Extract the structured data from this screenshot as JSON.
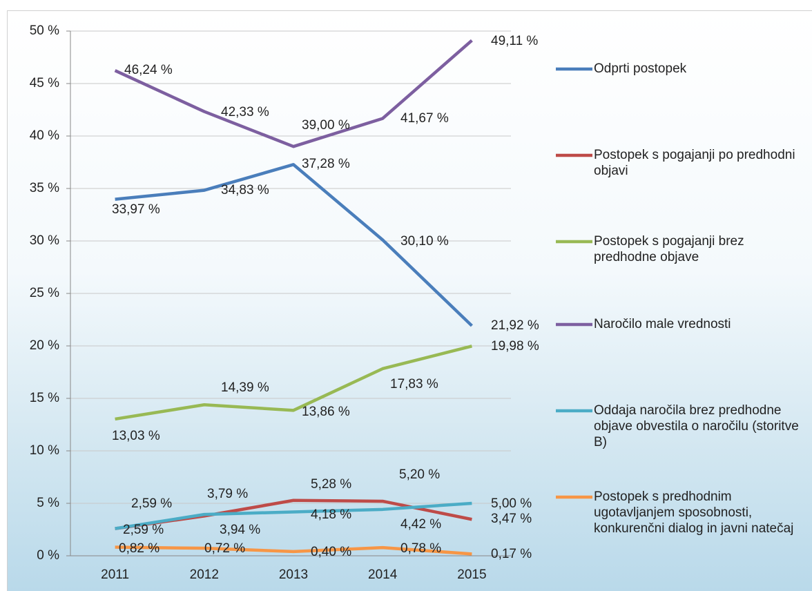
{
  "chart_data": {
    "type": "line",
    "categories": [
      "2011",
      "2012",
      "2013",
      "2014",
      "2015"
    ],
    "ylim": [
      0,
      50
    ],
    "yticks": [
      {
        "value": 0,
        "label": "0 %"
      },
      {
        "value": 5,
        "label": "5 %"
      },
      {
        "value": 10,
        "label": "10 %"
      },
      {
        "value": 15,
        "label": "15 %"
      },
      {
        "value": 20,
        "label": "20 %"
      },
      {
        "value": 25,
        "label": "25 %"
      },
      {
        "value": 30,
        "label": "30 %"
      },
      {
        "value": 35,
        "label": "35 %"
      },
      {
        "value": 40,
        "label": "40 %"
      },
      {
        "value": 45,
        "label": "45 %"
      },
      {
        "value": 50,
        "label": "50 %"
      }
    ],
    "grid": true,
    "legend": "right",
    "series": [
      {
        "name": "Odprti postopek",
        "color": "#4a7ebb",
        "values": [
          33.97,
          34.83,
          37.28,
          30.1,
          21.92
        ],
        "value_labels": [
          "33,97 %",
          "34,83 %",
          "37,28 %",
          "30,10 %",
          "21,92 %"
        ]
      },
      {
        "name": "Postopek s pogajanji po predhodni objavi",
        "color": "#be4b48",
        "values": [
          2.59,
          3.79,
          5.28,
          5.2,
          3.47
        ],
        "value_labels": [
          "2,59 %",
          "3,79 %",
          "5,28 %",
          "5,20 %",
          "3,47 %"
        ]
      },
      {
        "name": "Postopek s pogajanji brez predhodne objave",
        "color": "#98b954",
        "values": [
          13.03,
          14.39,
          13.86,
          17.83,
          19.98
        ],
        "value_labels": [
          "13,03 %",
          "14,39 %",
          "13,86 %",
          "17,83 %",
          "19,98 %"
        ]
      },
      {
        "name": "Naročilo male vrednosti",
        "color": "#7d5fa0",
        "values": [
          46.24,
          42.33,
          39.0,
          41.67,
          49.11
        ],
        "value_labels": [
          "46,24 %",
          "42,33 %",
          "39,00 %",
          "41,67 %",
          "49,11 %"
        ]
      },
      {
        "name": "Oddaja naročila brez predhodne objave obvestila o naročilu (storitve B)",
        "color": "#4bacc6",
        "values": [
          2.59,
          3.94,
          4.18,
          4.42,
          5.0
        ],
        "value_labels": [
          "2,59 %",
          "3,94 %",
          "4,18 %",
          "4,42 %",
          "5,00 %"
        ]
      },
      {
        "name": "Postopek s predhodnim ugotavljanjem sposobnosti, konkurenčni dialog in javni natečaj",
        "color": "#f79646",
        "values": [
          0.82,
          0.72,
          0.4,
          0.78,
          0.17
        ],
        "value_labels": [
          "0,82 %",
          "0,72 %",
          "0,40 %",
          "0,78 %",
          "0,17 %"
        ]
      }
    ]
  }
}
